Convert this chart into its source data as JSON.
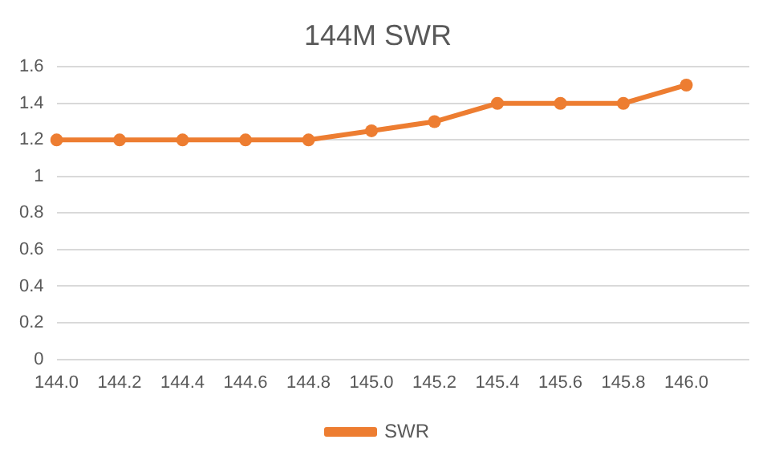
{
  "chart_data": {
    "type": "line",
    "title": "144M SWR",
    "categories": [
      "144.0",
      "144.2",
      "144.4",
      "144.6",
      "144.8",
      "145.0",
      "145.2",
      "145.4",
      "145.6",
      "145.8",
      "146.0",
      null
    ],
    "series": [
      {
        "name": "SWR",
        "color": "#ed7d31",
        "values": [
          1.2,
          1.2,
          1.2,
          1.2,
          1.2,
          1.25,
          1.3,
          1.4,
          1.4,
          1.4,
          1.5,
          null
        ]
      }
    ],
    "ylim": [
      0,
      1.6
    ],
    "yticks": [
      0,
      0.2,
      0.4,
      0.6,
      0.8,
      1,
      1.2,
      1.4,
      1.6
    ],
    "grid": "y",
    "legend": "bottom",
    "marker": "circle",
    "line_style": "solid"
  }
}
